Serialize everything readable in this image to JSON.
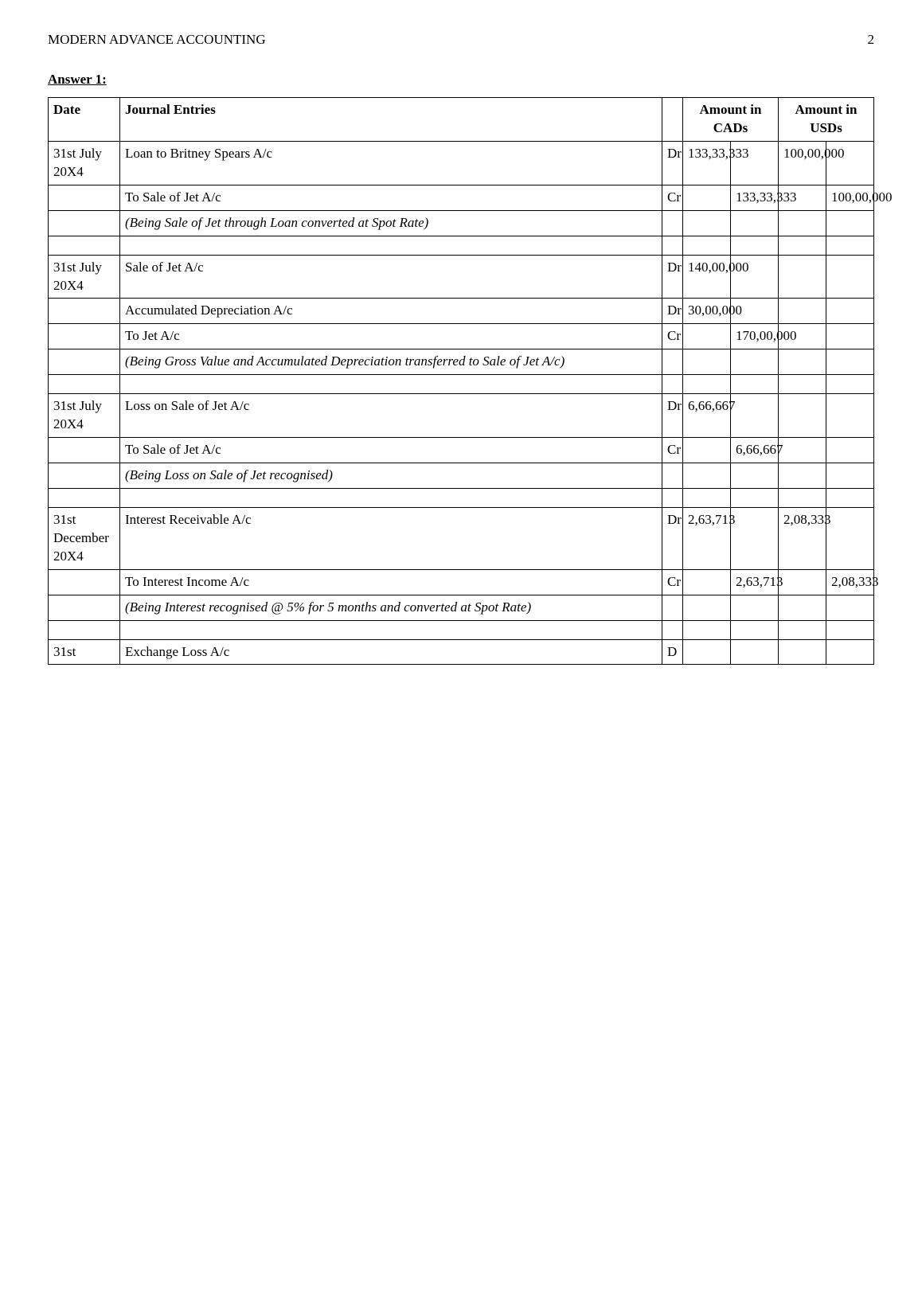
{
  "page": {
    "running_head": "MODERN ADVANCE ACCOUNTING",
    "page_number": "2"
  },
  "heading": "Answer 1:",
  "table_head": {
    "date": "Date",
    "journal": "Journal Entries",
    "amount_cads": "Amount in CADs",
    "amount_usds": "Amount in USDs"
  },
  "rows": [
    {
      "date": "31st July 20X4",
      "desc": "Loan to Britney Spears A/c",
      "drcr": "Dr",
      "cad_dr": "133,33,333",
      "cad_cr": "",
      "usd_dr": "100,00,000",
      "usd_cr": "",
      "italic": false
    },
    {
      "date": "",
      "desc": "To Sale of Jet A/c",
      "drcr": "Cr",
      "cad_dr": "",
      "cad_cr": "133,33,333",
      "usd_dr": "",
      "usd_cr": "100,00,000",
      "italic": false
    },
    {
      "date": "",
      "desc": "(Being Sale of Jet through Loan converted at Spot Rate)",
      "drcr": "",
      "cad_dr": "",
      "cad_cr": "",
      "usd_dr": "",
      "usd_cr": "",
      "italic": true
    },
    {
      "spacer": true
    },
    {
      "date": "31st July 20X4",
      "desc": "Sale of Jet A/c",
      "drcr": "Dr",
      "cad_dr": "140,00,000",
      "cad_cr": "",
      "usd_dr": "",
      "usd_cr": "",
      "italic": false
    },
    {
      "date": "",
      "desc": "Accumulated Depreciation A/c",
      "drcr": "Dr",
      "cad_dr": "30,00,000",
      "cad_cr": "",
      "usd_dr": "",
      "usd_cr": "",
      "italic": false
    },
    {
      "date": "",
      "desc": "To Jet A/c",
      "drcr": "Cr",
      "cad_dr": "",
      "cad_cr": "170,00,000",
      "usd_dr": "",
      "usd_cr": "",
      "italic": false
    },
    {
      "date": "",
      "desc": "(Being Gross Value and Accumulated Depreciation transferred to Sale of Jet A/c)",
      "drcr": "",
      "cad_dr": "",
      "cad_cr": "",
      "usd_dr": "",
      "usd_cr": "",
      "italic": true
    },
    {
      "spacer": true
    },
    {
      "date": "31st July 20X4",
      "desc": "Loss on Sale of Jet A/c",
      "drcr": "Dr",
      "cad_dr": "6,66,667",
      "cad_cr": "",
      "usd_dr": "",
      "usd_cr": "",
      "italic": false
    },
    {
      "date": "",
      "desc": "To Sale of Jet A/c",
      "drcr": "Cr",
      "cad_dr": "",
      "cad_cr": "6,66,667",
      "usd_dr": "",
      "usd_cr": "",
      "italic": false
    },
    {
      "date": "",
      "desc": "(Being Loss on Sale of Jet recognised)",
      "drcr": "",
      "cad_dr": "",
      "cad_cr": "",
      "usd_dr": "",
      "usd_cr": "",
      "italic": true
    },
    {
      "spacer": true
    },
    {
      "date": "31st December 20X4",
      "desc": "Interest Receivable A/c",
      "drcr": "Dr",
      "cad_dr": "2,63,713",
      "cad_cr": "",
      "usd_dr": "2,08,333",
      "usd_cr": "",
      "italic": false
    },
    {
      "date": "",
      "desc": "To Interest Income A/c",
      "drcr": "Cr",
      "cad_dr": "",
      "cad_cr": "2,63,713",
      "usd_dr": "",
      "usd_cr": "2,08,333",
      "italic": false
    },
    {
      "date": "",
      "desc": "(Being Interest recognised @ 5% for 5 months and converted at Spot Rate)",
      "drcr": "",
      "cad_dr": "",
      "cad_cr": "",
      "usd_dr": "",
      "usd_cr": "",
      "italic": true
    },
    {
      "spacer": true
    },
    {
      "date": "31st",
      "desc": "Exchange Loss A/c",
      "drcr": "D",
      "cad_dr": "",
      "cad_cr": "",
      "usd_dr": "",
      "usd_cr": "",
      "italic": false
    }
  ]
}
